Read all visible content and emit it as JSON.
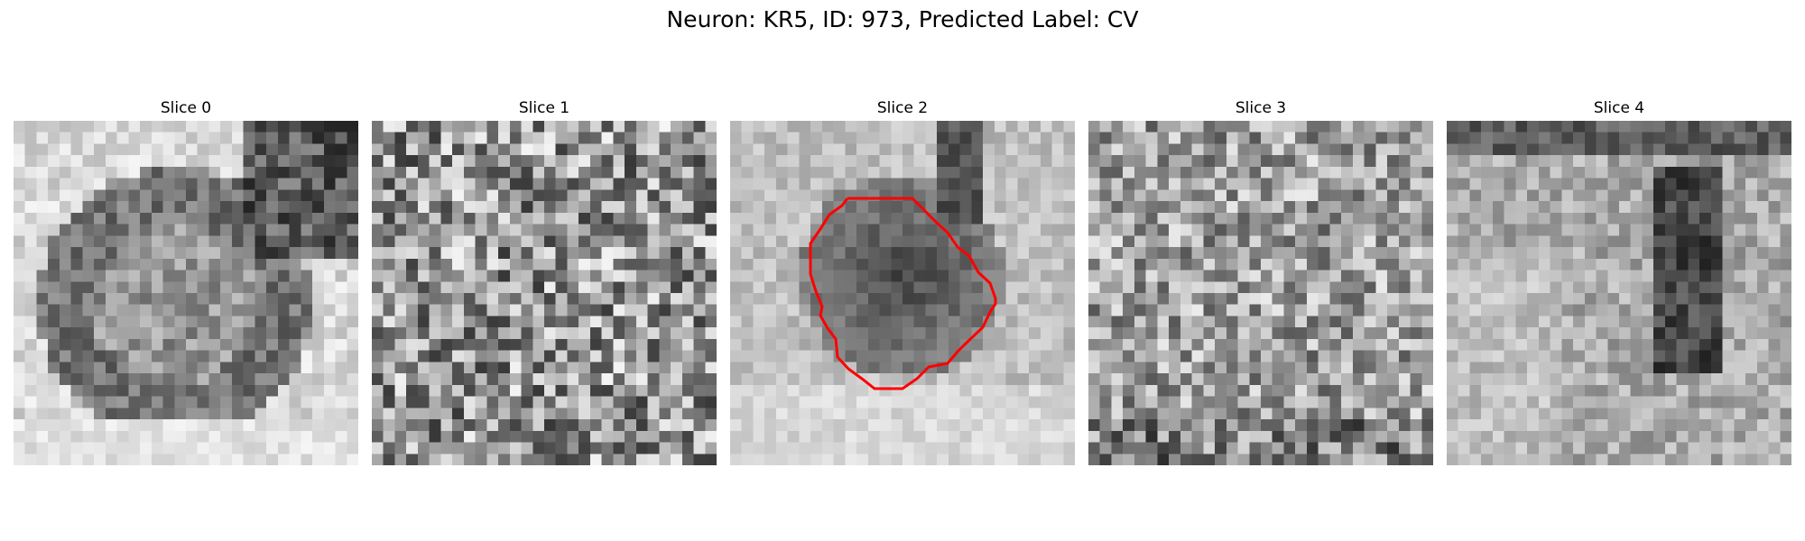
{
  "figure": {
    "title": "Neuron: KR5, ID: 973, Predicted Label: CV"
  },
  "slices": [
    {
      "label": "Slice 0",
      "pattern": "ring"
    },
    {
      "label": "Slice 1",
      "pattern": "noise"
    },
    {
      "label": "Slice 2",
      "pattern": "blob"
    },
    {
      "label": "Slice 3",
      "pattern": "fine-noise"
    },
    {
      "label": "Slice 4",
      "pattern": "dark-right"
    }
  ],
  "roi_outline": {
    "slice_index": 2,
    "color": "#ff0000"
  },
  "colormap": "gray"
}
